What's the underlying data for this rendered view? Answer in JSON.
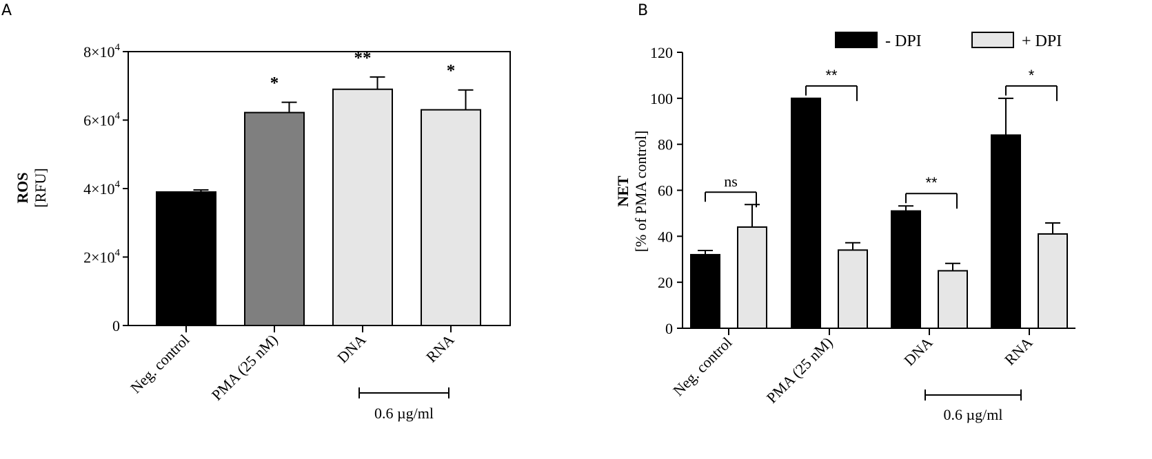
{
  "chart_data": [
    {
      "panel": "A",
      "type": "bar",
      "title": "",
      "ylabel_bold": "ROS",
      "ylabel": "[RFU]",
      "xlabel": "",
      "ylim": [
        0,
        80000
      ],
      "yticks": [
        0,
        20000,
        40000,
        60000,
        80000
      ],
      "ytick_labels": [
        {
          "base": "0",
          "exp": ""
        },
        {
          "base": "2×10",
          "exp": "4"
        },
        {
          "base": "4×10",
          "exp": "4"
        },
        {
          "base": "6×10",
          "exp": "4"
        },
        {
          "base": "8×10",
          "exp": "4"
        }
      ],
      "categories": [
        "Neg. control",
        "PMA (25 nM)",
        "DNA",
        "RNA"
      ],
      "values": [
        39000,
        62200,
        69000,
        63000
      ],
      "errors": [
        600,
        3000,
        3600,
        5800
      ],
      "colors": [
        "#000000",
        "#7f7f7f",
        "#e6e6e6",
        "#e6e6e6"
      ],
      "significance": [
        "",
        "*",
        "**",
        "*"
      ],
      "group_bracket": {
        "from": 2,
        "to": 3,
        "label": "0.6 µg/ml"
      }
    },
    {
      "panel": "B",
      "type": "bar",
      "title": "",
      "ylabel_bold": "NET",
      "ylabel": "[% of PMA control]",
      "xlabel": "",
      "ylim": [
        0,
        120
      ],
      "yticks": [
        0,
        20,
        40,
        60,
        80,
        100,
        120
      ],
      "categories": [
        "Neg. control",
        "PMA (25 nM)",
        "DNA",
        "RNA"
      ],
      "series": [
        {
          "name": "- DPI",
          "color": "#000000",
          "values": [
            32,
            100,
            51,
            84
          ],
          "errors": [
            1.8,
            0,
            2.2,
            16
          ]
        },
        {
          "name": "+ DPI",
          "color": "#e6e6e6",
          "values": [
            44,
            34,
            25,
            41
          ],
          "errors": [
            9.8,
            3.2,
            3.2,
            4.8
          ]
        }
      ],
      "comparisons": [
        {
          "category": 0,
          "label": "ns"
        },
        {
          "category": 1,
          "label": "**"
        },
        {
          "category": 2,
          "label": "**"
        },
        {
          "category": 3,
          "label": "*"
        }
      ],
      "group_bracket": {
        "from": 2,
        "to": 3,
        "label": "0.6 µg/ml"
      }
    }
  ]
}
